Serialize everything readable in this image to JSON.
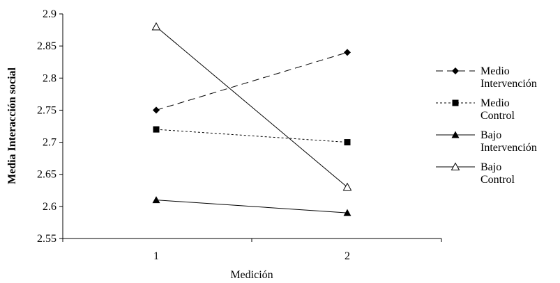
{
  "chart_data": {
    "type": "line",
    "title": "",
    "xlabel": "Medición",
    "ylabel": "Media Interacción social",
    "categories": [
      "1",
      "2"
    ],
    "ylim": [
      2.55,
      2.9
    ],
    "yticks": [
      "2.55",
      "2.6",
      "2.65",
      "2.7",
      "2.75",
      "2.8",
      "2.85",
      "2.9"
    ],
    "grid": false,
    "legend_position": "right",
    "series": [
      {
        "name": "Medio Intervención",
        "legend_lines": [
          "Medio",
          "Intervención"
        ],
        "values": [
          2.75,
          2.84
        ],
        "line_style": "dashed",
        "marker": "filled-diamond",
        "color": "#000000"
      },
      {
        "name": "Medio Control",
        "legend_lines": [
          "Medio",
          "Control"
        ],
        "values": [
          2.72,
          2.7
        ],
        "line_style": "dotted",
        "marker": "filled-square",
        "color": "#000000"
      },
      {
        "name": "Bajo Intervención",
        "legend_lines": [
          "Bajo",
          "Intervención"
        ],
        "values": [
          2.61,
          2.59
        ],
        "line_style": "solid",
        "marker": "filled-triangle",
        "color": "#000000"
      },
      {
        "name": "Bajo Control",
        "legend_lines": [
          "Bajo",
          "Control"
        ],
        "values": [
          2.88,
          2.63
        ],
        "line_style": "solid",
        "marker": "open-triangle",
        "color": "#000000"
      }
    ]
  }
}
